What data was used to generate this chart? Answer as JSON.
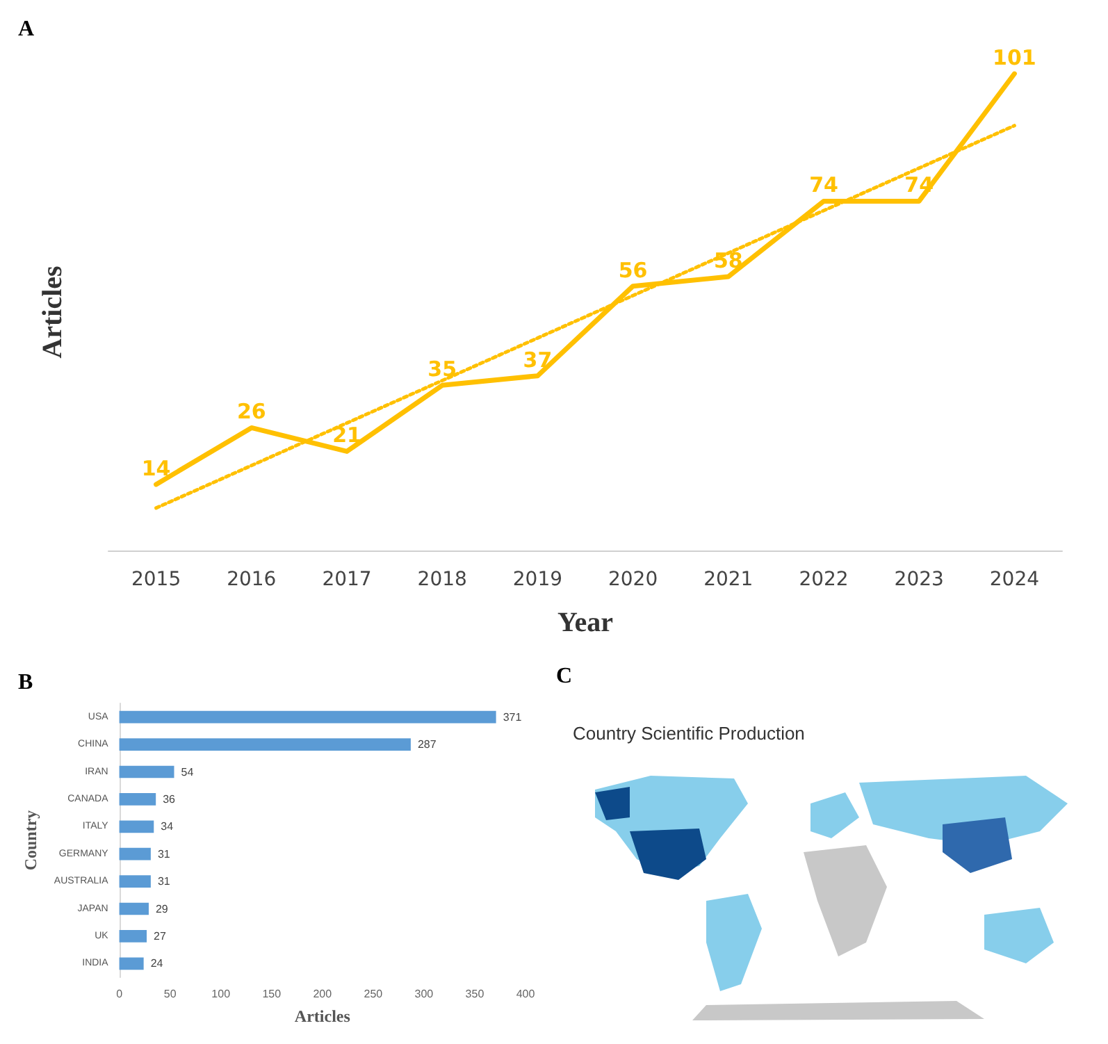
{
  "chart_data": [
    {
      "type": "line",
      "title": "A",
      "xlabel": "Year",
      "ylabel": "Articles",
      "tick_labels": "x",
      "marker": "none",
      "line_style": "solid",
      "categories": [
        "2015",
        "2016",
        "2017",
        "2018",
        "2019",
        "2020",
        "2021",
        "2022",
        "2023",
        "2024"
      ],
      "series": [
        {
          "color": "#ffc000",
          "values": [
            14,
            26,
            21,
            35,
            37,
            56,
            58,
            74,
            74,
            101
          ],
          "value_labels": [
            "14",
            "26",
            "21",
            "35",
            "37",
            "56",
            "58",
            "74",
            "74",
            "101"
          ]
        },
        {
          "type": "line",
          "color": "#ffc000",
          "line_style": "dotted",
          "values": [
            9,
            18,
            27,
            36,
            45,
            54,
            63,
            72,
            81,
            90
          ]
        }
      ]
    },
    {
      "type": "bar",
      "orientation": "horizontal",
      "title": "B",
      "xlabel": "Articles",
      "ylabel": "Country",
      "categories": [
        "USA",
        "CHINA",
        "IRAN",
        "CANADA",
        "ITALY",
        "GERMANY",
        "AUSTRALIA",
        "JAPAN",
        "UK",
        "INDIA"
      ],
      "values": [
        371,
        287,
        54,
        36,
        34,
        31,
        31,
        29,
        27,
        24
      ],
      "color": "#5b9bd5",
      "data_labels": true,
      "xlim": [
        0,
        400
      ],
      "xticks": [
        0,
        50,
        100,
        150,
        200,
        250,
        300,
        350,
        400
      ]
    },
    {
      "type": "other",
      "title": "Country Scientific Production",
      "annotations": [
        "C"
      ]
    }
  ]
}
